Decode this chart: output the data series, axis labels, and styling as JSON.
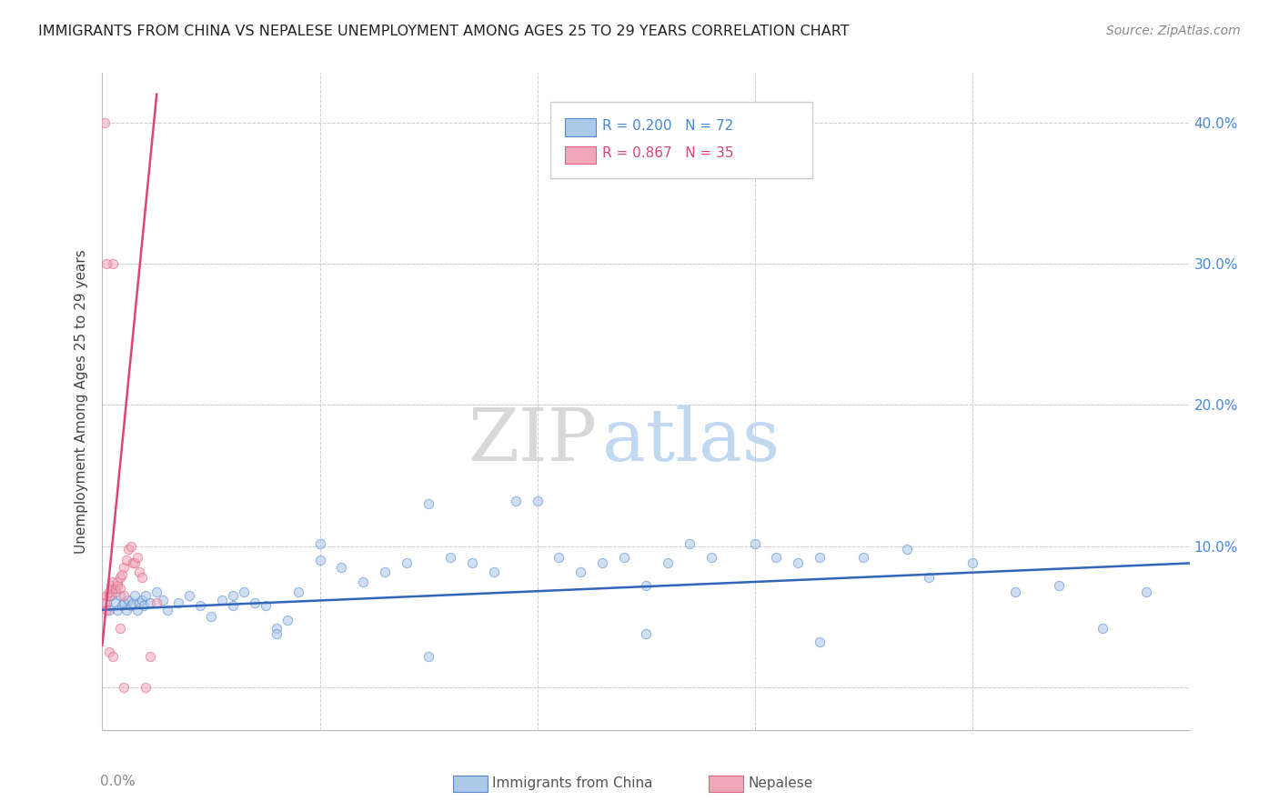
{
  "title": "IMMIGRANTS FROM CHINA VS NEPALESE UNEMPLOYMENT AMONG AGES 25 TO 29 YEARS CORRELATION CHART",
  "source": "Source: ZipAtlas.com",
  "ylabel": "Unemployment Among Ages 25 to 29 years",
  "xlim": [
    0.0,
    0.5
  ],
  "ylim": [
    -0.03,
    0.435
  ],
  "ytick_values": [
    0.0,
    0.1,
    0.2,
    0.3,
    0.4
  ],
  "xtick_values": [
    0.0,
    0.1,
    0.2,
    0.3,
    0.4,
    0.5
  ],
  "watermark_zip": "ZIP",
  "watermark_atlas": "atlas",
  "china_color": "#aac8e8",
  "china_edge_color": "#5588cc",
  "china_line_color": "#3366bb",
  "nepal_color": "#f0a8b8",
  "nepal_edge_color": "#e06080",
  "nepal_line_color": "#dd4477",
  "china_x": [
    0.002,
    0.003,
    0.004,
    0.005,
    0.006,
    0.007,
    0.008,
    0.009,
    0.01,
    0.011,
    0.012,
    0.013,
    0.014,
    0.015,
    0.016,
    0.017,
    0.018,
    0.019,
    0.02,
    0.022,
    0.025,
    0.028,
    0.03,
    0.035,
    0.04,
    0.045,
    0.05,
    0.055,
    0.06,
    0.065,
    0.07,
    0.075,
    0.08,
    0.085,
    0.09,
    0.1,
    0.11,
    0.12,
    0.13,
    0.14,
    0.15,
    0.16,
    0.17,
    0.18,
    0.19,
    0.2,
    0.21,
    0.22,
    0.23,
    0.24,
    0.25,
    0.26,
    0.27,
    0.28,
    0.3,
    0.31,
    0.32,
    0.33,
    0.35,
    0.37,
    0.38,
    0.4,
    0.42,
    0.44,
    0.46,
    0.48,
    0.15,
    0.25,
    0.33,
    0.1,
    0.08,
    0.06
  ],
  "china_y": [
    0.06,
    0.055,
    0.065,
    0.07,
    0.06,
    0.055,
    0.065,
    0.058,
    0.06,
    0.055,
    0.062,
    0.058,
    0.06,
    0.065,
    0.055,
    0.06,
    0.062,
    0.058,
    0.065,
    0.06,
    0.068,
    0.062,
    0.055,
    0.06,
    0.065,
    0.058,
    0.05,
    0.062,
    0.065,
    0.068,
    0.06,
    0.058,
    0.042,
    0.048,
    0.068,
    0.09,
    0.085,
    0.075,
    0.082,
    0.088,
    0.13,
    0.092,
    0.088,
    0.082,
    0.132,
    0.132,
    0.092,
    0.082,
    0.088,
    0.092,
    0.072,
    0.088,
    0.102,
    0.092,
    0.102,
    0.092,
    0.088,
    0.092,
    0.092,
    0.098,
    0.078,
    0.088,
    0.068,
    0.072,
    0.042,
    0.068,
    0.022,
    0.038,
    0.032,
    0.102,
    0.038,
    0.058
  ],
  "nepal_x": [
    0.001,
    0.002,
    0.002,
    0.003,
    0.003,
    0.004,
    0.004,
    0.005,
    0.005,
    0.006,
    0.006,
    0.007,
    0.007,
    0.008,
    0.008,
    0.009,
    0.01,
    0.01,
    0.011,
    0.012,
    0.013,
    0.014,
    0.015,
    0.016,
    0.017,
    0.018,
    0.02,
    0.022,
    0.025,
    0.001,
    0.002,
    0.003,
    0.005,
    0.008,
    0.01
  ],
  "nepal_y": [
    0.06,
    0.055,
    0.065,
    0.065,
    0.068,
    0.07,
    0.072,
    0.075,
    0.3,
    0.068,
    0.07,
    0.072,
    0.075,
    0.078,
    0.07,
    0.08,
    0.085,
    0.065,
    0.09,
    0.098,
    0.1,
    0.088,
    0.088,
    0.092,
    0.082,
    0.078,
    0.0,
    0.022,
    0.06,
    0.4,
    0.3,
    0.025,
    0.022,
    0.042,
    0.0
  ],
  "china_line_x": [
    0.0,
    0.5
  ],
  "china_line_y_start": 0.055,
  "china_line_y_end": 0.088,
  "nepal_line_x": [
    0.0,
    0.025
  ],
  "nepal_line_y_start": 0.03,
  "nepal_line_y_end": 0.42,
  "marker_size": 55,
  "marker_alpha": 0.55,
  "grid_color": "#cccccc",
  "bg_color": "#ffffff",
  "legend_R1": "R = 0.200",
  "legend_N1": "N = 72",
  "legend_R2": "R = 0.867",
  "legend_N2": "N = 35",
  "legend_color1": "#aac8e8",
  "legend_color2": "#f0a8b8",
  "legend_text_color1": "#4488dd",
  "legend_text_color2": "#dd4477",
  "right_label_color": "#4488dd",
  "xlabel_color": "#888888",
  "title_color": "#222222",
  "source_color": "#888888",
  "ylabel_color": "#444444"
}
